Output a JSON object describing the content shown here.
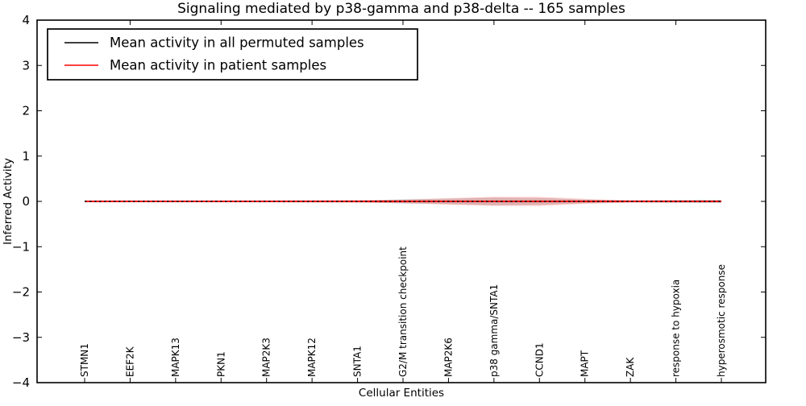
{
  "chart_data": {
    "type": "line",
    "title": "Signaling mediated by p38-gamma and p38-delta -- 165 samples",
    "xlabel": "Cellular Entities",
    "ylabel": "Inferred Activity",
    "ylim": [
      -4,
      4
    ],
    "yticks": [
      -4,
      -3,
      -2,
      -1,
      0,
      1,
      2,
      3,
      4
    ],
    "grid": false,
    "legend_position": "upper left",
    "categories": [
      "STMN1",
      "EEF2K",
      "MAPK13",
      "PKN1",
      "MAP2K3",
      "MAPK12",
      "SNTA1",
      "G2/M transition checkpoint",
      "MAP2K6",
      "p38 gamma/SNTA1",
      "CCND1",
      "MAPT",
      "ZAK",
      "response to hypoxia",
      "hyperosmotic response"
    ],
    "series": [
      {
        "name": "Mean activity in all permuted samples",
        "color": "#000000",
        "line_style": "dashed",
        "values": [
          0,
          0,
          0,
          0,
          0,
          0,
          0,
          0,
          0,
          0,
          0,
          0,
          0,
          0,
          0
        ],
        "band_halfwidth": [
          0.01,
          0.01,
          0.01,
          0.01,
          0.01,
          0.01,
          0.015,
          0.05,
          0.06,
          0.085,
          0.075,
          0.04,
          0.02,
          0.03,
          0.035
        ],
        "band_color": "rgba(110,110,110,0.28)"
      },
      {
        "name": "Mean activity in patient samples",
        "color": "#ff0000",
        "line_style": "solid",
        "values": [
          0,
          0,
          0,
          0,
          0,
          0,
          0,
          0,
          0,
          0,
          0,
          0,
          0,
          0,
          0
        ],
        "band_halfwidth": [
          0.02,
          0.02,
          0.02,
          0.02,
          0.02,
          0.025,
          0.03,
          0.035,
          0.07,
          0.1,
          0.1,
          0.055,
          0.027,
          0.022,
          0.02
        ],
        "band_color": "rgba(255,0,0,0.18)"
      }
    ]
  }
}
